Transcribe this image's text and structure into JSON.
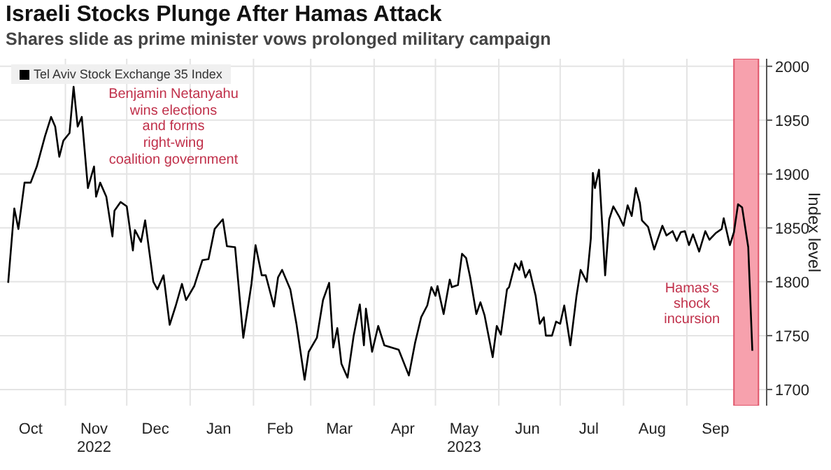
{
  "chart_data": {
    "type": "line",
    "title": "Israeli Stocks Plunge After Hamas Attack",
    "subtitle": "Shares slide as prime minister vows prolonged military campaign",
    "ylabel": "Index level",
    "x": [
      "2022-10-04",
      "2022-10-07",
      "2022-10-09",
      "2022-10-12",
      "2022-10-15",
      "2022-10-18",
      "2022-10-22",
      "2022-10-25",
      "2022-10-27",
      "2022-10-29",
      "2022-10-31",
      "2022-11-03",
      "2022-11-05",
      "2022-11-07",
      "2022-11-09",
      "2022-11-12",
      "2022-11-15",
      "2022-11-16",
      "2022-11-18",
      "2022-11-21",
      "2022-11-24",
      "2022-11-25",
      "2022-11-28",
      "2022-12-01",
      "2022-12-04",
      "2022-12-05",
      "2022-12-08",
      "2022-12-10",
      "2022-12-14",
      "2022-12-16",
      "2022-12-19",
      "2022-12-22",
      "2022-12-25",
      "2022-12-28",
      "2022-12-30",
      "2023-01-03",
      "2023-01-07",
      "2023-01-10",
      "2023-01-13",
      "2023-01-17",
      "2023-01-19",
      "2023-01-23",
      "2023-01-27",
      "2023-01-31",
      "2023-02-02",
      "2023-02-05",
      "2023-02-07",
      "2023-02-11",
      "2023-02-13",
      "2023-02-15",
      "2023-02-19",
      "2023-02-22",
      "2023-02-26",
      "2023-02-28",
      "2023-03-04",
      "2023-03-07",
      "2023-03-10",
      "2023-03-12",
      "2023-03-14",
      "2023-03-16",
      "2023-03-19",
      "2023-03-22",
      "2023-03-25",
      "2023-03-27",
      "2023-03-28",
      "2023-03-31",
      "2023-04-03",
      "2023-04-06",
      "2023-04-13",
      "2023-04-18",
      "2023-04-21",
      "2023-04-24",
      "2023-04-27",
      "2023-04-29",
      "2023-05-01",
      "2023-05-02",
      "2023-05-05",
      "2023-05-08",
      "2023-05-09",
      "2023-05-12",
      "2023-05-14",
      "2023-05-16",
      "2023-05-18",
      "2023-05-21",
      "2023-05-23",
      "2023-05-25",
      "2023-05-29",
      "2023-05-31",
      "2023-06-02",
      "2023-06-05",
      "2023-06-06",
      "2023-06-09",
      "2023-06-11",
      "2023-06-12",
      "2023-06-14",
      "2023-06-16",
      "2023-06-19",
      "2023-06-21",
      "2023-06-23",
      "2023-06-24",
      "2023-06-27",
      "2023-06-29",
      "2023-07-01",
      "2023-07-03",
      "2023-07-06",
      "2023-07-09",
      "2023-07-11",
      "2023-07-14",
      "2023-07-16",
      "2023-07-17",
      "2023-07-18",
      "2023-07-20",
      "2023-07-23",
      "2023-07-25",
      "2023-07-27",
      "2023-07-30",
      "2023-08-01",
      "2023-08-03",
      "2023-08-05",
      "2023-08-07",
      "2023-08-09",
      "2023-08-10",
      "2023-08-13",
      "2023-08-16",
      "2023-08-20",
      "2023-08-22",
      "2023-08-25",
      "2023-08-27",
      "2023-08-29",
      "2023-08-31",
      "2023-09-02",
      "2023-09-04",
      "2023-09-07",
      "2023-09-10",
      "2023-09-12",
      "2023-09-15",
      "2023-09-18",
      "2023-09-19",
      "2023-09-22",
      "2023-09-24",
      "2023-09-26",
      "2023-09-28",
      "2023-10-01",
      "2023-10-03"
    ],
    "series": [
      {
        "name": "Tel Aviv Stock Exchange 35 Index",
        "color": "#000000",
        "values": [
          1799,
          1868,
          1849,
          1892,
          1892,
          1907,
          1935,
          1953,
          1944,
          1916,
          1931,
          1938,
          1981,
          1944,
          1953,
          1887,
          1907,
          1879,
          1892,
          1879,
          1842,
          1866,
          1874,
          1870,
          1829,
          1848,
          1837,
          1857,
          1800,
          1793,
          1806,
          1760,
          1778,
          1798,
          1783,
          1796,
          1820,
          1821,
          1849,
          1858,
          1833,
          1832,
          1748,
          1798,
          1834,
          1806,
          1806,
          1777,
          1804,
          1811,
          1793,
          1761,
          1709,
          1735,
          1748,
          1783,
          1799,
          1739,
          1757,
          1724,
          1711,
          1750,
          1779,
          1741,
          1775,
          1735,
          1759,
          1741,
          1737,
          1713,
          1743,
          1767,
          1778,
          1795,
          1787,
          1796,
          1770,
          1802,
          1795,
          1797,
          1826,
          1822,
          1804,
          1770,
          1781,
          1769,
          1730,
          1759,
          1751,
          1793,
          1795,
          1817,
          1811,
          1819,
          1804,
          1811,
          1787,
          1761,
          1767,
          1750,
          1750,
          1763,
          1761,
          1778,
          1741,
          1787,
          1811,
          1800,
          1840,
          1901,
          1887,
          1904,
          1806,
          1858,
          1870,
          1860,
          1852,
          1871,
          1861,
          1887,
          1873,
          1857,
          1851,
          1830,
          1852,
          1843,
          1847,
          1838,
          1846,
          1847,
          1834,
          1844,
          1828,
          1847,
          1839,
          1845,
          1849,
          1859,
          1834,
          1846,
          1872,
          1869,
          1832,
          1736
        ]
      }
    ],
    "xlim": [
      "2022-09-30",
      "2023-10-10"
    ],
    "xticks": [
      {
        "value": "2022-10-15",
        "label": "Oct"
      },
      {
        "value": "2022-11-01",
        "label": null
      },
      {
        "value": "2022-11-15",
        "label": "Nov\n2022"
      },
      {
        "value": "2022-12-01",
        "label": null
      },
      {
        "value": "2022-12-15",
        "label": "Dec"
      },
      {
        "value": "2023-01-01",
        "label": null
      },
      {
        "value": "2023-01-15",
        "label": "Jan"
      },
      {
        "value": "2023-02-01",
        "label": null
      },
      {
        "value": "2023-02-14",
        "label": "Feb"
      },
      {
        "value": "2023-03-01",
        "label": null
      },
      {
        "value": "2023-03-15",
        "label": "Mar"
      },
      {
        "value": "2023-04-01",
        "label": null
      },
      {
        "value": "2023-04-15",
        "label": "Apr"
      },
      {
        "value": "2023-05-01",
        "label": null
      },
      {
        "value": "2023-05-15",
        "label": "May\n2023"
      },
      {
        "value": "2023-06-01",
        "label": null
      },
      {
        "value": "2023-06-15",
        "label": "Jun"
      },
      {
        "value": "2023-07-01",
        "label": null
      },
      {
        "value": "2023-07-15",
        "label": "Jul"
      },
      {
        "value": "2023-08-01",
        "label": null
      },
      {
        "value": "2023-08-15",
        "label": "Aug"
      },
      {
        "value": "2023-09-01",
        "label": null
      },
      {
        "value": "2023-09-15",
        "label": "Sep"
      }
    ],
    "ylim": [
      1685,
      2007
    ],
    "yticks": [
      1700,
      1750,
      1800,
      1850,
      1900,
      1950,
      2000
    ],
    "grid": true,
    "legend": "top left",
    "marker": "none",
    "line_style": "solid",
    "bands": [
      {
        "axis": "x",
        "from": "2023-09-24",
        "to": "2023-10-06",
        "label": "Hamas's\nshock\nincursion",
        "color": "#f7a1ad"
      }
    ],
    "annotations": [
      "Benjamin Netanyahu\nwins elections\nand forms\nright-wing\ncoalition government"
    ]
  }
}
